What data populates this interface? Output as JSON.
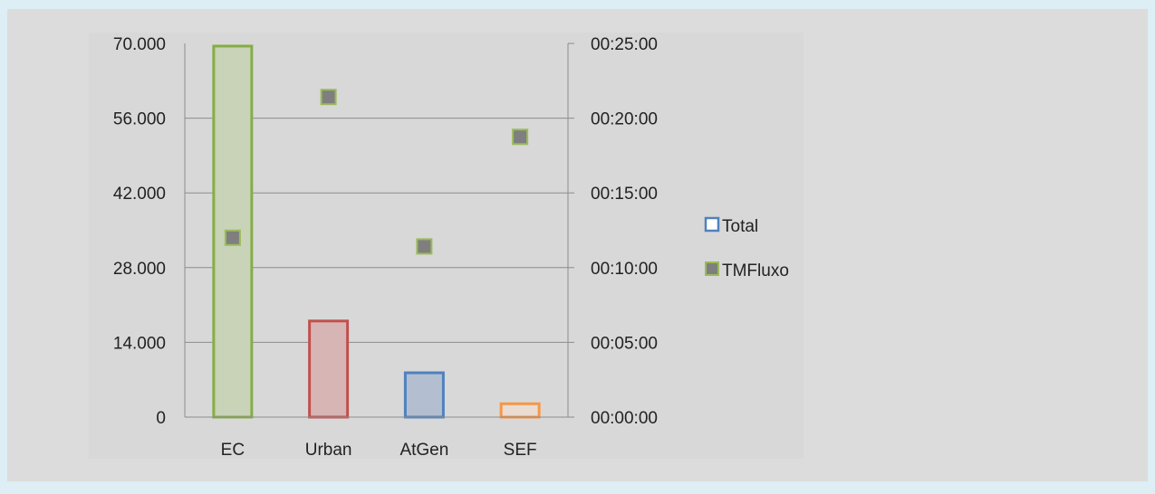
{
  "chart_data": {
    "type": "bar",
    "title": "",
    "xlabel": "",
    "ylabel": "",
    "categories": [
      "EC",
      "Urban",
      "AtGen",
      "SEF"
    ],
    "series": [
      {
        "name": "Total",
        "chart": "bar",
        "axis": "left",
        "values": [
          69500,
          18000,
          8300,
          2500
        ],
        "colors": [
          "#86ad46",
          "#c0504d",
          "#4f81bd",
          "#f79646"
        ],
        "fills": [
          "#c8d3b8",
          "#d7b5b5",
          "#b3bfd0",
          "#eadcd0"
        ]
      },
      {
        "name": "TMFluxo",
        "chart": "scatter",
        "axis": "right",
        "values": [
          "00:12:00",
          "00:21:25",
          "00:11:25",
          "00:18:45"
        ],
        "marker_fill": "#7f7f7f",
        "marker_stroke": "#9bbb59"
      }
    ],
    "y_left": {
      "ylim": [
        0,
        70000
      ],
      "ticks": [
        "0",
        "14.000",
        "28.000",
        "42.000",
        "56.000",
        "70.000"
      ]
    },
    "y_right": {
      "ylim": [
        "00:00:00",
        "00:25:00"
      ],
      "ticks": [
        "00:00:00",
        "00:05:00",
        "00:10:00",
        "00:15:00",
        "00:20:00",
        "00:25:00"
      ]
    },
    "grid": true,
    "legend": {
      "position": "right",
      "items": [
        {
          "label": "Total",
          "marker": "hollow-square",
          "color": "#4f81bd"
        },
        {
          "label": "TMFluxo",
          "marker": "filled-square",
          "color": "#7f7f7f",
          "edge": "#9bbb59"
        }
      ]
    }
  }
}
